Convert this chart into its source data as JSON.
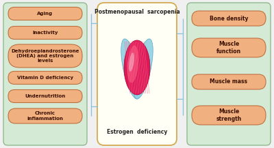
{
  "bg_color": "#f0f0f0",
  "left_box_bg": "#d4ead4",
  "left_box_border": "#90b890",
  "right_box_bg": "#d4ead4",
  "right_box_border": "#90b890",
  "center_box_bg": "#fffff5",
  "center_box_border": "#d4aa50",
  "pill_bg": "#f0b080",
  "pill_border": "#c07040",
  "pill_text_color": "#3a1000",
  "left_labels": [
    "Aging",
    "Inactivity",
    "Dehydroepiandrosterone\n(DHEA) and estrogen\nlevels",
    "Vitamin D deficiency",
    "Undernutrition",
    "Chronic\ninflammation"
  ],
  "right_labels": [
    "Bone density",
    "Muscle\nfunction",
    "Muscle mass",
    "Muscle\nstrength"
  ],
  "center_top": "Postmenopausal  sarcopenia",
  "center_bottom": "Estrogen  deficiency",
  "connector_color": "#88c0d8",
  "muscle_cyan": "#90d0e0",
  "muscle_red": "#e01050",
  "muscle_pink": "#f05080"
}
